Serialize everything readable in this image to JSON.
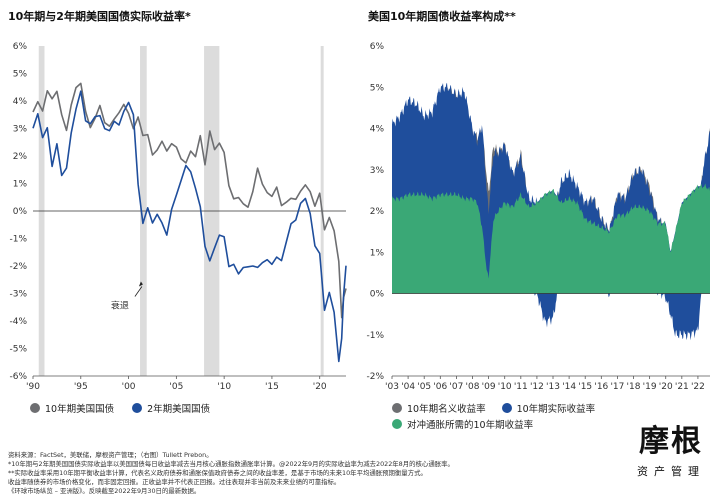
{
  "chart_data": [
    {
      "type": "line",
      "title": "10年期与2年期美国国债实际收益率*",
      "ylim": [
        -6,
        6
      ],
      "y_ticks": [
        "6%",
        "5%",
        "4%",
        "3%",
        "2%",
        "1%",
        "0%",
        "-1%",
        "-2%",
        "-3%",
        "-4%",
        "-5%",
        "-6%"
      ],
      "x_ticks": [
        "'90",
        "'95",
        "'00",
        "'05",
        "'10",
        "'15",
        "'20"
      ],
      "xlim": [
        1990,
        2022.75
      ],
      "recessions": [
        [
          1990.6,
          1991.2
        ],
        [
          2001.2,
          2001.9
        ],
        [
          2007.9,
          2009.5
        ],
        [
          2020.1,
          2020.4
        ]
      ],
      "annotation": "衰退",
      "series": [
        {
          "name": "10年期美国国债",
          "color": "#6d6e71",
          "x": [
            1990,
            1990.5,
            1991,
            1991.5,
            1992,
            1992.5,
            1993,
            1993.5,
            1994,
            1994.5,
            1995,
            1995.5,
            1996,
            1996.5,
            1997,
            1997.5,
            1998,
            1998.5,
            1999,
            1999.5,
            2000,
            2000.5,
            2001,
            2001.5,
            2002,
            2002.5,
            2003,
            2003.5,
            2004,
            2004.5,
            2005,
            2005.5,
            2006,
            2006.5,
            2007,
            2007.5,
            2008,
            2008.5,
            2009,
            2009.5,
            2010,
            2010.5,
            2011,
            2011.5,
            2012,
            2012.5,
            2013,
            2013.5,
            2014,
            2014.5,
            2015,
            2015.5,
            2016,
            2016.5,
            2017,
            2017.5,
            2018,
            2018.5,
            2019,
            2019.5,
            2020,
            2020.5,
            2021,
            2021.5,
            2022,
            2022.3,
            2022.5,
            2022.75
          ],
          "y": [
            3.6,
            3.9,
            3.5,
            4.2,
            3.9,
            4.2,
            3.4,
            2.9,
            3.9,
            4.6,
            4.8,
            3.8,
            3.2,
            3.5,
            3.9,
            3.2,
            3.0,
            3.2,
            3.4,
            3.7,
            3.4,
            2.9,
            3.4,
            2.8,
            2.9,
            2.2,
            2.4,
            2.7,
            2.3,
            2.5,
            2.3,
            1.8,
            1.6,
            2.0,
            1.8,
            2.6,
            1.6,
            2.9,
            2.3,
            2.6,
            2.3,
            1.1,
            0.6,
            0.6,
            0.3,
            0.1,
            0.6,
            1.4,
            0.8,
            0.5,
            0.4,
            0.8,
            0.2,
            0.4,
            0.6,
            0.6,
            0.9,
            1.1,
            0.8,
            0.2,
            0.6,
            -0.8,
            -0.4,
            -0.9,
            -2.0,
            -4.0,
            -3.2,
            -2.8
          ]
        },
        {
          "name": "2年期美国国债",
          "color": "#1f4e9c",
          "x": [
            1990,
            1990.5,
            1991,
            1991.5,
            1992,
            1992.5,
            1993,
            1993.5,
            1994,
            1994.5,
            1995,
            1995.5,
            1996,
            1996.5,
            1997,
            1997.5,
            1998,
            1998.5,
            1999,
            1999.5,
            2000,
            2000.5,
            2001,
            2001.5,
            2002,
            2002.5,
            2003,
            2003.5,
            2004,
            2004.5,
            2005,
            2005.5,
            2006,
            2006.5,
            2007,
            2007.5,
            2008,
            2008.5,
            2009,
            2009.5,
            2010,
            2010.5,
            2011,
            2011.5,
            2012,
            2012.5,
            2013,
            2013.5,
            2014,
            2014.5,
            2015,
            2015.5,
            2016,
            2016.5,
            2017,
            2017.5,
            2018,
            2018.5,
            2019,
            2019.5,
            2020,
            2020.5,
            2021,
            2021.5,
            2022,
            2022.3,
            2022.5,
            2022.75
          ],
          "y": [
            3.0,
            3.6,
            2.8,
            3.2,
            1.8,
            2.6,
            1.4,
            1.6,
            2.8,
            3.6,
            4.2,
            3.1,
            3.0,
            3.3,
            3.4,
            3.0,
            3.0,
            3.4,
            3.3,
            3.8,
            4.1,
            3.6,
            1.0,
            -0.5,
            0.0,
            -0.6,
            -0.3,
            -0.6,
            -1.0,
            0.0,
            0.6,
            1.2,
            1.8,
            1.6,
            1.0,
            0.3,
            -1.2,
            -1.8,
            -1.4,
            -1.0,
            -1.1,
            -2.2,
            -2.1,
            -2.4,
            -2.1,
            -2.0,
            -1.9,
            -1.9,
            -1.7,
            -1.6,
            -1.8,
            -1.6,
            -1.8,
            -1.2,
            -0.6,
            -0.5,
            0.1,
            0.3,
            -0.2,
            -1.3,
            -1.5,
            -3.5,
            -2.8,
            -3.5,
            -5.3,
            -4.5,
            -3.0,
            -2.0
          ]
        }
      ]
    },
    {
      "type": "area",
      "title": "美国10年期国债收益率构成**",
      "ylim": [
        -2,
        6
      ],
      "y_ticks": [
        "6%",
        "5%",
        "4%",
        "3%",
        "2%",
        "1%",
        "0%",
        "-1%",
        "-2%"
      ],
      "x_ticks": [
        "'03",
        "'04",
        "'05",
        "'06",
        "'07",
        "'08",
        "'09",
        "'10",
        "'11",
        "'12",
        "'13",
        "'14",
        "'15",
        "'16",
        "'17",
        "'18",
        "'19",
        "'20",
        "'21",
        "'22"
      ],
      "xlim": [
        2003,
        2022.75
      ],
      "x": [
        2003,
        2003.5,
        2004,
        2004.5,
        2005,
        2005.5,
        2006,
        2006.5,
        2007,
        2007.5,
        2008,
        2008.3,
        2008.6,
        2008.9,
        2009,
        2009.3,
        2009.6,
        2010,
        2010.5,
        2011,
        2011.5,
        2012,
        2012.5,
        2013,
        2013.5,
        2014,
        2014.5,
        2015,
        2015.5,
        2016,
        2016.5,
        2017,
        2017.5,
        2018,
        2018.5,
        2019,
        2019.5,
        2020,
        2020.3,
        2020.6,
        2021,
        2021.5,
        2022,
        2022.3,
        2022.5,
        2022.75
      ],
      "series": [
        {
          "name": "10年期名义收益率",
          "color": "#6d6e71",
          "values": [
            4.0,
            4.2,
            4.5,
            4.3,
            4.2,
            4.3,
            4.8,
            4.9,
            4.8,
            4.7,
            3.9,
            3.8,
            3.9,
            2.8,
            2.4,
            3.6,
            3.4,
            3.6,
            2.8,
            3.4,
            2.2,
            1.9,
            1.6,
            1.9,
            2.6,
            2.8,
            2.5,
            2.1,
            2.3,
            1.8,
            1.5,
            2.4,
            2.3,
            2.9,
            3.0,
            2.6,
            1.8,
            1.6,
            0.7,
            0.6,
            1.2,
            1.4,
            1.9,
            2.9,
            3.3,
            3.9
          ]
        },
        {
          "name": "10年期实际收益率",
          "color": "#1f4e9c",
          "values": [
            1.8,
            2.0,
            2.3,
            2.2,
            1.9,
            2.1,
            2.6,
            2.6,
            2.4,
            2.6,
            1.7,
            1.5,
            2.5,
            1.9,
            1.6,
            1.6,
            1.4,
            1.4,
            0.8,
            0.9,
            0.2,
            0.0,
            -0.7,
            -0.6,
            0.5,
            0.6,
            0.4,
            0.4,
            0.6,
            0.2,
            0.0,
            0.5,
            0.4,
            0.8,
            0.9,
            0.5,
            0.1,
            -0.1,
            -0.5,
            -1.0,
            -1.0,
            -1.0,
            -0.9,
            0.4,
            0.8,
            1.4
          ]
        },
        {
          "name": "对冲通胀所需的10年期收益率",
          "color": "#3aa876",
          "values": [
            2.3,
            2.3,
            2.4,
            2.4,
            2.4,
            2.3,
            2.4,
            2.4,
            2.4,
            2.3,
            2.3,
            2.2,
            1.6,
            0.5,
            0.4,
            1.8,
            2.0,
            2.2,
            2.1,
            2.4,
            2.1,
            2.2,
            2.4,
            2.5,
            2.2,
            2.3,
            2.2,
            1.8,
            1.7,
            1.6,
            1.5,
            1.9,
            1.9,
            2.1,
            2.1,
            2.0,
            1.7,
            1.7,
            1.0,
            1.5,
            2.2,
            2.4,
            2.6,
            2.6,
            2.6,
            2.5
          ]
        }
      ]
    }
  ],
  "footnotes": [
    "资料来源：FactSet，美联储，摩根资产管理；（右图）Tullett Prebon。",
    "*10年期与2年期美国国债实际收益率以美国国债每日收益率减去当月核心通胀指数通胀率计算。@2022年9月的实际收益率为减去2022年8月的核心通胀率。",
    "**实际收益率采用10年期平衡收益率计算，代表名义政府债券和通胀保值政府债券之间的收益率差，是基于市场的未来10年平均通胀预期衡量方式。",
    "收益率随债券的市场价格变化，而非固定回报。正收益率并不代表正回报。过往表现并非当前及未来业绩的可靠指标。",
    "《环球市场纵览 – 亚洲版》。反映截至2022年9月30日的最新数据。"
  ],
  "logo": {
    "main": "摩根",
    "sub": "资产管理"
  }
}
